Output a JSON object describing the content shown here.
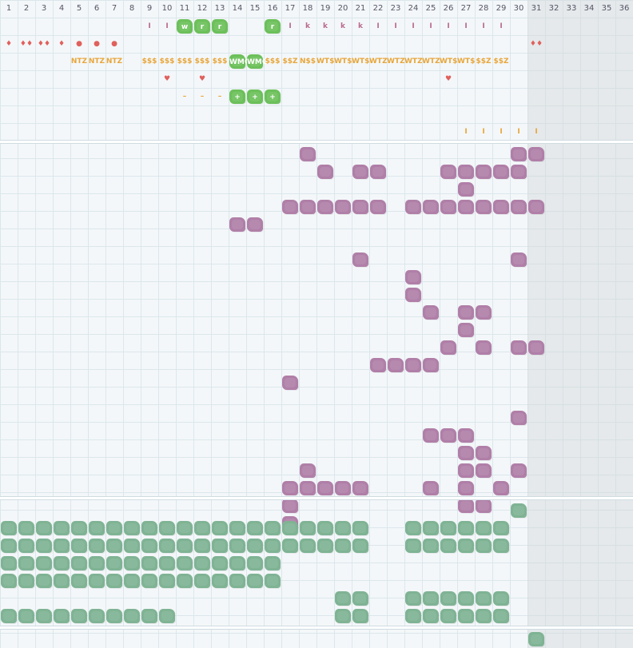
{
  "columns": [
    "1",
    "2",
    "3",
    "4",
    "5",
    "6",
    "7",
    "8",
    "9",
    "10",
    "11",
    "12",
    "13",
    "14",
    "15",
    "16",
    "17",
    "18",
    "19",
    "20",
    "21",
    "22",
    "23",
    "24",
    "25",
    "26",
    "27",
    "28",
    "29",
    "30",
    "31",
    "32",
    "33",
    "34",
    "35",
    "36"
  ],
  "colors": {
    "mauve": "#b07fa8",
    "green_block": "#7fb394",
    "bright_green": "#6cc05a",
    "red": "#e0605c",
    "orange": "#e8a63a",
    "pink_text": "#b86a8f",
    "grid": "#dbe7ec",
    "bg": "#f4f7f9"
  },
  "top_rows": [
    {
      "row": 1,
      "marks": [
        {
          "col": 9,
          "text": "I",
          "kind": "text",
          "color": "pink_text"
        },
        {
          "col": 10,
          "text": "I",
          "kind": "text",
          "color": "pink_text"
        },
        {
          "col": 11,
          "text": "w",
          "kind": "badge"
        },
        {
          "col": 12,
          "text": "r",
          "kind": "badge"
        },
        {
          "col": 13,
          "text": "r",
          "kind": "badge"
        },
        {
          "col": 16,
          "text": "r",
          "kind": "badge"
        },
        {
          "col": 17,
          "text": "I",
          "kind": "text",
          "color": "pink_text"
        },
        {
          "col": 18,
          "text": "k",
          "kind": "text",
          "color": "pink_text"
        },
        {
          "col": 19,
          "text": "k",
          "kind": "text",
          "color": "pink_text"
        },
        {
          "col": 20,
          "text": "k",
          "kind": "text",
          "color": "pink_text"
        },
        {
          "col": 21,
          "text": "k",
          "kind": "text",
          "color": "pink_text"
        },
        {
          "col": 22,
          "text": "I",
          "kind": "text",
          "color": "pink_text"
        },
        {
          "col": 23,
          "text": "I",
          "kind": "text",
          "color": "pink_text"
        },
        {
          "col": 24,
          "text": "I",
          "kind": "text",
          "color": "pink_text"
        },
        {
          "col": 25,
          "text": "I",
          "kind": "text",
          "color": "pink_text"
        },
        {
          "col": 26,
          "text": "I",
          "kind": "text",
          "color": "pink_text"
        },
        {
          "col": 27,
          "text": "I",
          "kind": "text",
          "color": "pink_text"
        },
        {
          "col": 28,
          "text": "I",
          "kind": "text",
          "color": "pink_text"
        },
        {
          "col": 29,
          "text": "I",
          "kind": "text",
          "color": "pink_text"
        }
      ]
    },
    {
      "row": 2,
      "marks": [
        {
          "col": 1,
          "text": "♦",
          "kind": "text",
          "color": "red"
        },
        {
          "col": 2,
          "text": "♦♦",
          "kind": "text",
          "color": "red"
        },
        {
          "col": 3,
          "text": "♦♦",
          "kind": "text",
          "color": "red"
        },
        {
          "col": 4,
          "text": "♦",
          "kind": "text",
          "color": "red"
        },
        {
          "col": 5,
          "text": "●",
          "kind": "text",
          "color": "red"
        },
        {
          "col": 6,
          "text": "●",
          "kind": "text",
          "color": "red"
        },
        {
          "col": 7,
          "text": "●",
          "kind": "text",
          "color": "red"
        },
        {
          "col": 31,
          "text": "♦♦",
          "kind": "text",
          "color": "red"
        }
      ]
    },
    {
      "row": 3,
      "marks": [
        {
          "col": 5,
          "text": "NTZ",
          "kind": "text",
          "color": "orange"
        },
        {
          "col": 6,
          "text": "NTZ",
          "kind": "text",
          "color": "orange"
        },
        {
          "col": 7,
          "text": "NTZ",
          "kind": "text",
          "color": "orange"
        },
        {
          "col": 9,
          "text": "$$$",
          "kind": "text",
          "color": "orange"
        },
        {
          "col": 10,
          "text": "$$$",
          "kind": "text",
          "color": "orange"
        },
        {
          "col": 11,
          "text": "$$$",
          "kind": "text",
          "color": "orange"
        },
        {
          "col": 12,
          "text": "$$$",
          "kind": "text",
          "color": "orange"
        },
        {
          "col": 13,
          "text": "$$$",
          "kind": "text",
          "color": "orange"
        },
        {
          "col": 14,
          "text": "WMO",
          "kind": "badge"
        },
        {
          "col": 15,
          "text": "WMO",
          "kind": "badge"
        },
        {
          "col": 16,
          "text": "$$$",
          "kind": "text",
          "color": "orange"
        },
        {
          "col": 17,
          "text": "$$Z",
          "kind": "text",
          "color": "orange"
        },
        {
          "col": 18,
          "text": "N$$",
          "kind": "text",
          "color": "orange"
        },
        {
          "col": 19,
          "text": "WT$",
          "kind": "text",
          "color": "orange"
        },
        {
          "col": 20,
          "text": "WT$",
          "kind": "text",
          "color": "orange"
        },
        {
          "col": 21,
          "text": "WT$",
          "kind": "text",
          "color": "orange"
        },
        {
          "col": 22,
          "text": "WTZ",
          "kind": "text",
          "color": "orange"
        },
        {
          "col": 23,
          "text": "WTZ",
          "kind": "text",
          "color": "orange"
        },
        {
          "col": 24,
          "text": "WTZ",
          "kind": "text",
          "color": "orange"
        },
        {
          "col": 25,
          "text": "WTZ",
          "kind": "text",
          "color": "orange"
        },
        {
          "col": 26,
          "text": "WT$",
          "kind": "text",
          "color": "orange"
        },
        {
          "col": 27,
          "text": "WT$",
          "kind": "text",
          "color": "orange"
        },
        {
          "col": 28,
          "text": "$$Z",
          "kind": "text",
          "color": "orange"
        },
        {
          "col": 29,
          "text": "$$Z",
          "kind": "text",
          "color": "orange"
        }
      ]
    },
    {
      "row": 4,
      "marks": [
        {
          "col": 10,
          "text": "♥",
          "kind": "text",
          "color": "red"
        },
        {
          "col": 12,
          "text": "♥",
          "kind": "text",
          "color": "red"
        },
        {
          "col": 26,
          "text": "♥",
          "kind": "text",
          "color": "red"
        }
      ]
    },
    {
      "row": 5,
      "marks": [
        {
          "col": 11,
          "text": "–",
          "kind": "text",
          "color": "orange"
        },
        {
          "col": 12,
          "text": "–",
          "kind": "text",
          "color": "orange"
        },
        {
          "col": 13,
          "text": "–",
          "kind": "text",
          "color": "orange"
        },
        {
          "col": 14,
          "text": "+",
          "kind": "badge"
        },
        {
          "col": 15,
          "text": "+",
          "kind": "badge"
        },
        {
          "col": 16,
          "text": "+",
          "kind": "badge"
        }
      ]
    },
    {
      "row": 7,
      "marks": [
        {
          "col": 27,
          "text": "I",
          "kind": "text",
          "color": "orange"
        },
        {
          "col": 28,
          "text": "I",
          "kind": "text",
          "color": "orange"
        },
        {
          "col": 29,
          "text": "I",
          "kind": "text",
          "color": "orange"
        },
        {
          "col": 30,
          "text": "I",
          "kind": "text",
          "color": "orange"
        },
        {
          "col": 31,
          "text": "I",
          "kind": "text",
          "color": "orange"
        }
      ]
    }
  ],
  "mauve_rows": [
    {
      "row": 1,
      "cols": [
        18,
        30,
        31
      ]
    },
    {
      "row": 2,
      "cols": [
        19,
        21,
        22,
        26,
        27,
        28,
        29,
        30
      ]
    },
    {
      "row": 3,
      "cols": [
        27
      ]
    },
    {
      "row": 4,
      "cols": [
        17,
        18,
        19,
        20,
        21,
        22,
        24,
        25,
        26,
        27,
        28,
        29,
        30,
        31
      ]
    },
    {
      "row": 5,
      "cols": [
        14,
        15
      ]
    },
    {
      "row": 6,
      "cols": []
    },
    {
      "row": 7,
      "cols": [
        21,
        30
      ]
    },
    {
      "row": 8,
      "cols": [
        24
      ]
    },
    {
      "row": 9,
      "cols": [
        24
      ]
    },
    {
      "row": 10,
      "cols": [
        25,
        27,
        28
      ]
    },
    {
      "row": 11,
      "cols": [
        27
      ]
    },
    {
      "row": 12,
      "cols": [
        26,
        28,
        30,
        31
      ]
    },
    {
      "row": 13,
      "cols": [
        22,
        23,
        24,
        25
      ]
    },
    {
      "row": 14,
      "cols": [
        17
      ]
    },
    {
      "row": 15,
      "cols": []
    },
    {
      "row": 16,
      "cols": [
        30
      ]
    },
    {
      "row": 17,
      "cols": [
        25,
        26,
        27
      ]
    },
    {
      "row": 18,
      "cols": [
        27,
        28
      ]
    },
    {
      "row": 19,
      "cols": [
        18,
        27,
        28,
        30
      ]
    },
    {
      "row": 20,
      "cols": [
        17,
        18,
        19,
        20,
        21,
        25,
        27,
        29
      ]
    },
    {
      "row": 21,
      "cols": [
        17,
        27,
        28
      ]
    },
    {
      "row": 22,
      "cols": [
        17
      ]
    }
  ],
  "green_rows": [
    {
      "row": 1,
      "cols": [
        30
      ]
    },
    {
      "row": 2,
      "cols": [
        1,
        2,
        3,
        4,
        5,
        6,
        7,
        8,
        9,
        10,
        11,
        12,
        13,
        14,
        15,
        16,
        17,
        18,
        19,
        20,
        21,
        24,
        25,
        26,
        27,
        28,
        29
      ]
    },
    {
      "row": 3,
      "cols": [
        1,
        2,
        3,
        4,
        5,
        6,
        7,
        8,
        9,
        10,
        11,
        12,
        13,
        14,
        15,
        16,
        17,
        18,
        19,
        20,
        21,
        24,
        25,
        26,
        27,
        28,
        29
      ]
    },
    {
      "row": 4,
      "cols": [
        1,
        2,
        3,
        4,
        5,
        6,
        7,
        8,
        9,
        10,
        11,
        12,
        13,
        14,
        15,
        16
      ]
    },
    {
      "row": 5,
      "cols": [
        1,
        2,
        3,
        4,
        5,
        6,
        7,
        8,
        9,
        10,
        11,
        12,
        13,
        14,
        15,
        16
      ]
    },
    {
      "row": 6,
      "cols": [
        20,
        21,
        24,
        25,
        26,
        27,
        28,
        29
      ]
    },
    {
      "row": 7,
      "cols": [
        1,
        2,
        3,
        4,
        5,
        6,
        7,
        8,
        9,
        10,
        20,
        21,
        24,
        25,
        26,
        27,
        28,
        29
      ]
    }
  ],
  "bottom_row": {
    "cols": [
      31
    ]
  }
}
